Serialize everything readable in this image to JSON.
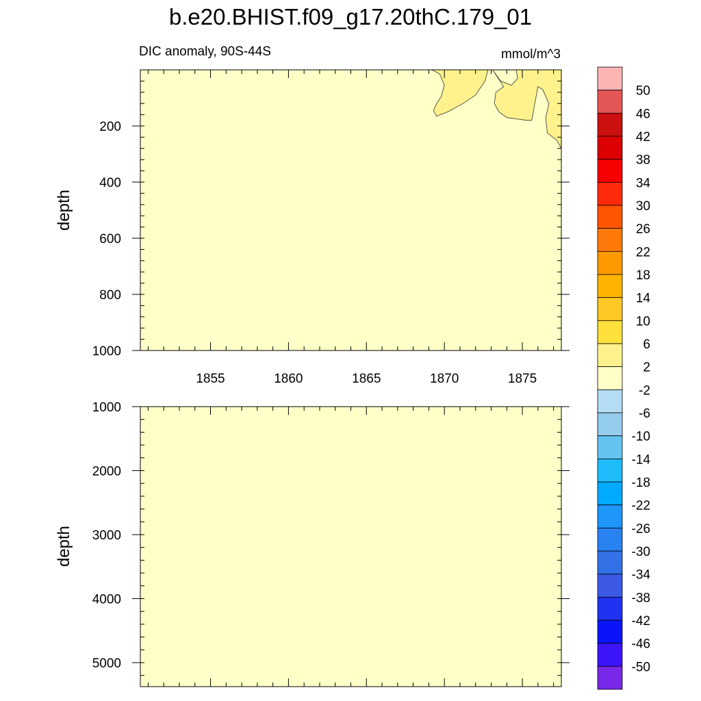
{
  "title": "b.e20.BHIST.f09_g17.20thC.179_01",
  "subtitle_left": "DIC anomaly, 90S-44S",
  "subtitle_right": "mmol/m^3",
  "chart_data": [
    {
      "type": "heatmap",
      "panel": "upper",
      "ylabel": "depth",
      "xlabel": "",
      "xlim": [
        1850.5,
        1877.5
      ],
      "ylim": [
        1000,
        0
      ],
      "x_ticks": [
        1855,
        1860,
        1865,
        1870,
        1875
      ],
      "y_ticks": [
        200,
        400,
        600,
        800,
        1000
      ],
      "background_range": "-2 to 2",
      "regions": [
        {
          "range": "2 to 6",
          "polygon": [
            [
              1869.2,
              0
            ],
            [
              1869.7,
              15
            ],
            [
              1870.0,
              55
            ],
            [
              1869.8,
              95
            ],
            [
              1869.5,
              120
            ],
            [
              1869.3,
              145
            ],
            [
              1869.5,
              165
            ],
            [
              1870.2,
              150
            ],
            [
              1871.2,
              120
            ],
            [
              1872.0,
              90
            ],
            [
              1872.6,
              40
            ],
            [
              1872.8,
              0
            ]
          ]
        },
        {
          "range": "2 to 6",
          "polygon": [
            [
              1873.1,
              0
            ],
            [
              1873.6,
              40
            ],
            [
              1874.3,
              55
            ],
            [
              1874.7,
              30
            ],
            [
              1874.6,
              0
            ],
            [
              1877.5,
              0
            ],
            [
              1877.5,
              280
            ],
            [
              1877.2,
              250
            ],
            [
              1876.6,
              225
            ],
            [
              1876.5,
              170
            ],
            [
              1876.7,
              120
            ],
            [
              1876.3,
              70
            ],
            [
              1876.0,
              60
            ],
            [
              1875.6,
              180
            ],
            [
              1875.3,
              180
            ],
            [
              1874.0,
              170
            ],
            [
              1873.5,
              150
            ],
            [
              1873.2,
              120
            ],
            [
              1873.3,
              80
            ],
            [
              1873.8,
              60
            ]
          ]
        }
      ]
    },
    {
      "type": "heatmap",
      "panel": "lower",
      "ylabel": "depth",
      "xlabel": "",
      "xlim": [
        1850.5,
        1877.5
      ],
      "ylim": [
        5375,
        1000
      ],
      "y_ticks": [
        1000,
        2000,
        3000,
        4000,
        5000
      ],
      "background_range": "-2 to 2",
      "regions": []
    }
  ],
  "colorbar": {
    "labels": [
      "50",
      "46",
      "42",
      "38",
      "34",
      "30",
      "26",
      "22",
      "18",
      "14",
      "10",
      "6",
      "2",
      "-2",
      "-6",
      "-10",
      "-14",
      "-18",
      "-22",
      "-26",
      "-30",
      "-34",
      "-38",
      "-42",
      "-46",
      "-50"
    ],
    "colors": [
      "#ffb4b4",
      "#e45656",
      "#cc1010",
      "#dc0000",
      "#f80000",
      "#ff2a0a",
      "#ff5500",
      "#ff7a0a",
      "#ff9a00",
      "#ffb400",
      "#ffc824",
      "#ffe03c",
      "#fff28c",
      "#ffffc8",
      "#b4dcf4",
      "#96ccec",
      "#64c4f0",
      "#1ebcfa",
      "#00aaff",
      "#1e96fa",
      "#2882f0",
      "#3272e6",
      "#3c5ae6",
      "#1e32f0",
      "#0a14fa",
      "#3c14fa",
      "#7828e6"
    ]
  }
}
